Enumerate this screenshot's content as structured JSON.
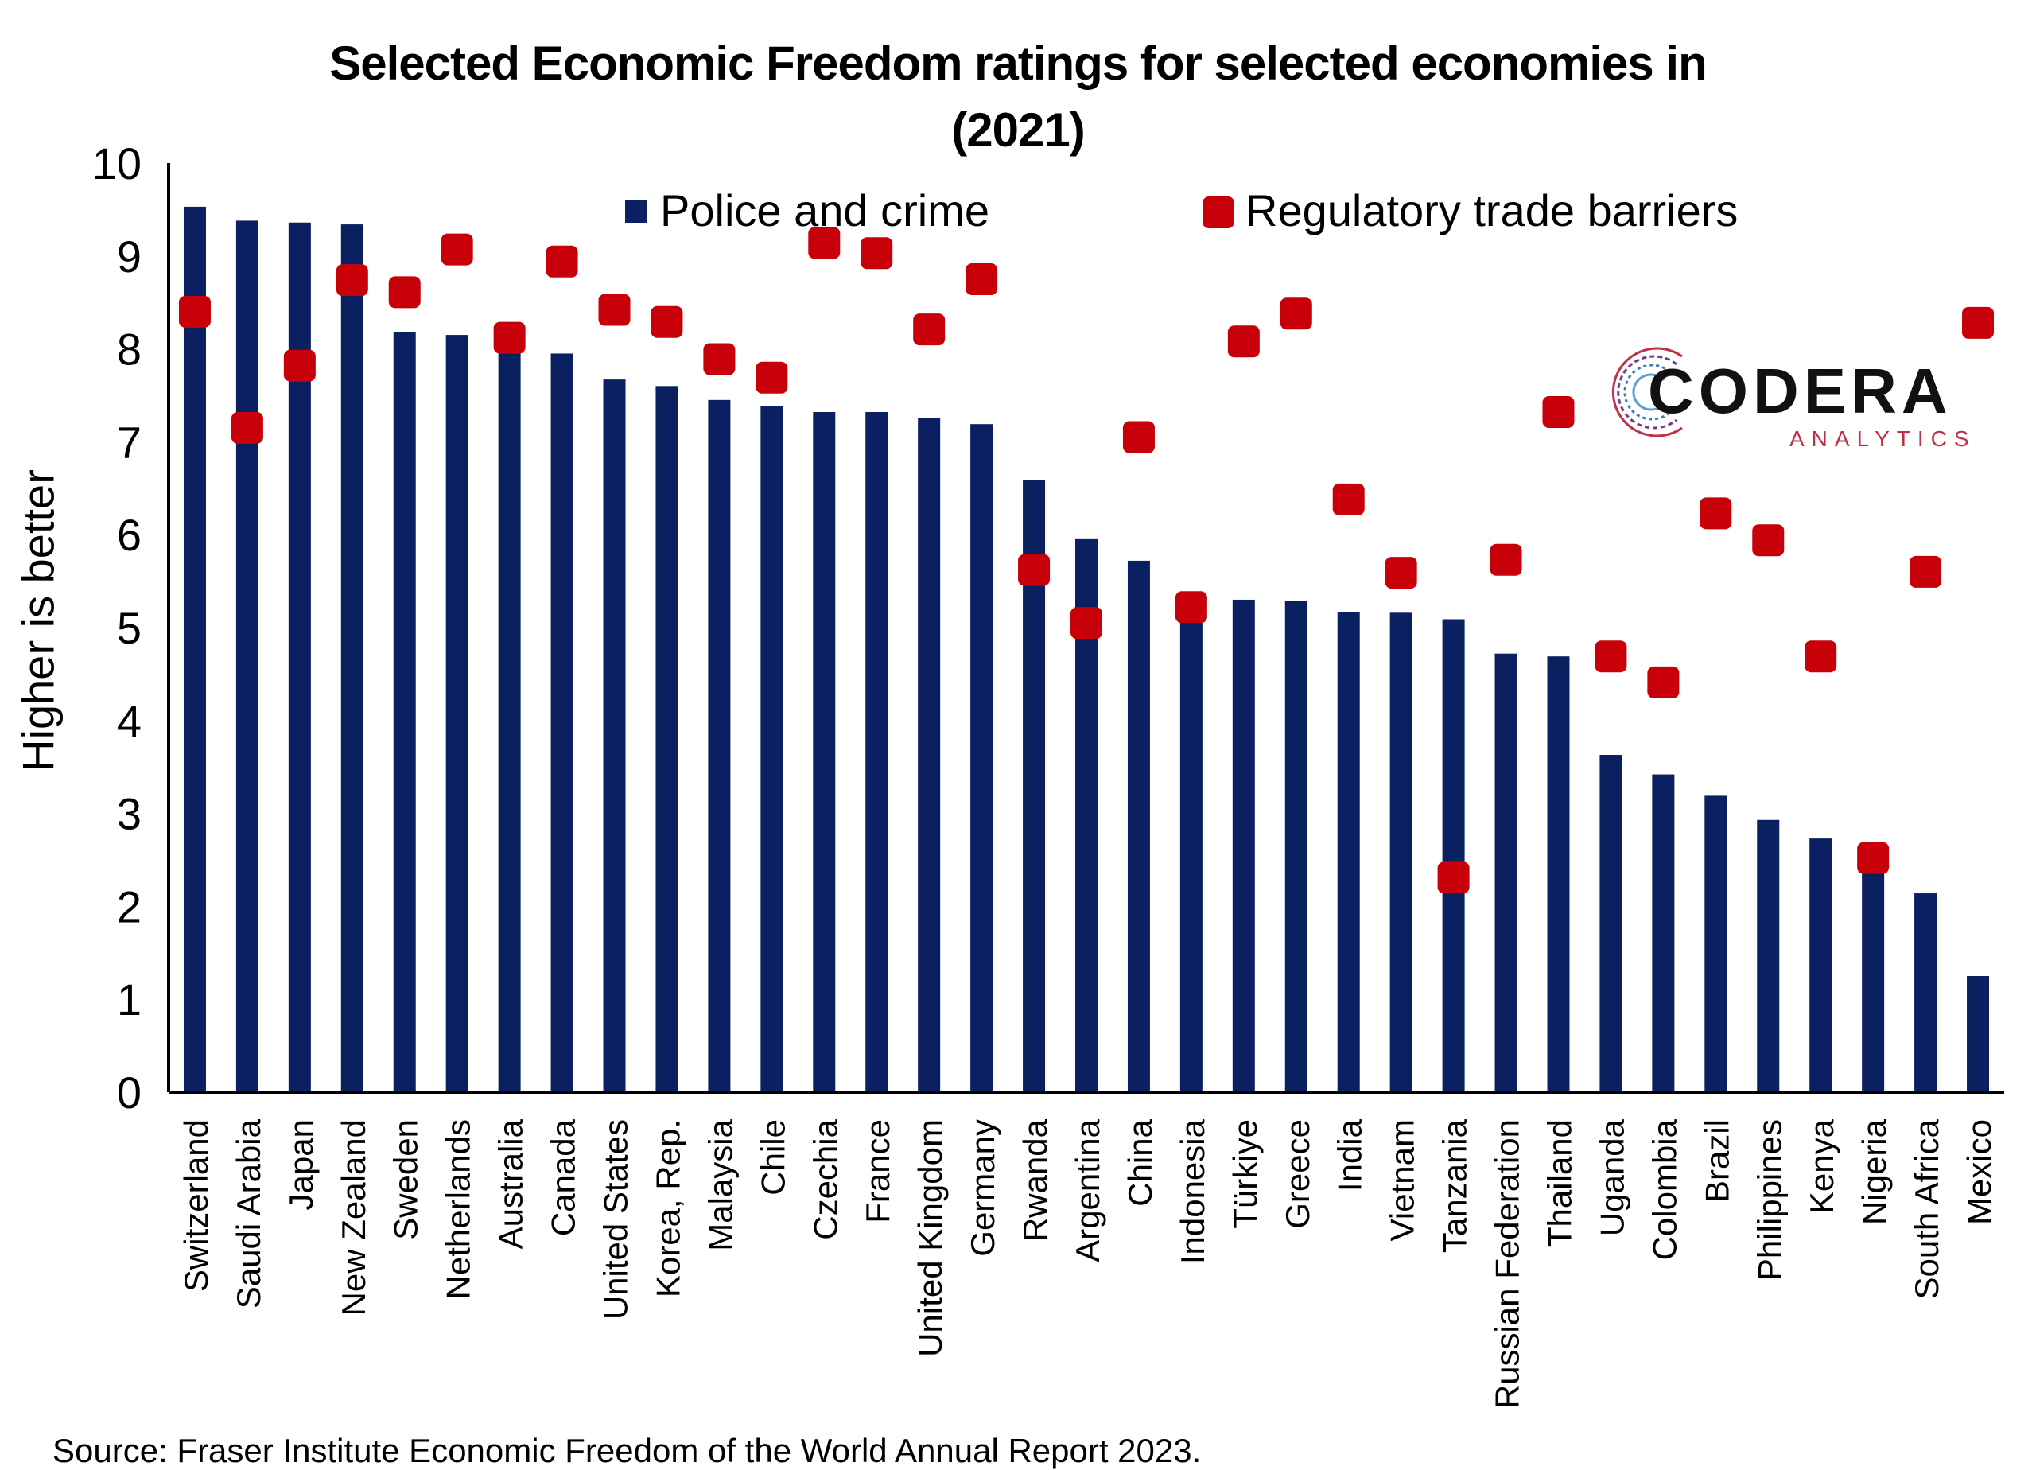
{
  "chart_data": {
    "type": "bar",
    "title": "Selected Economic Freedom ratings for selected economies in (2021)",
    "ylabel": "Higher is better",
    "xlabel": "",
    "ylim": [
      0,
      10
    ],
    "yticks": [
      "0",
      "1",
      "2",
      "3",
      "4",
      "5",
      "6",
      "7",
      "8",
      "9",
      "10"
    ],
    "legend_position": "top",
    "grid": false,
    "categories": [
      "Switzerland",
      "Saudi Arabia",
      "Japan",
      "New Zealand",
      "Sweden",
      "Netherlands",
      "Australia",
      "Canada",
      "United States",
      "Korea, Rep.",
      "Malaysia",
      "Chile",
      "Czechia",
      "France",
      "United Kingdom",
      "Germany",
      "Rwanda",
      "Argentina",
      "China",
      "Indonesia",
      "Türkiye",
      "Greece",
      "India",
      "Vietnam",
      "Tanzania",
      "Russian Federation",
      "Thailand",
      "Uganda",
      "Colombia",
      "Brazil",
      "Philippines",
      "Kenya",
      "Nigeria",
      "South Africa",
      "Mexico"
    ],
    "series": [
      {
        "name": "Police and crime",
        "kind": "bar",
        "color": "#0b2060",
        "values": [
          9.53,
          9.38,
          9.36,
          9.34,
          8.18,
          8.15,
          8.05,
          7.95,
          7.67,
          7.6,
          7.45,
          7.38,
          7.32,
          7.32,
          7.26,
          7.19,
          6.59,
          5.96,
          5.72,
          5.25,
          5.3,
          5.29,
          5.17,
          5.16,
          5.09,
          4.72,
          4.69,
          3.63,
          3.42,
          3.19,
          2.93,
          2.73,
          2.42,
          2.14,
          1.25
        ]
      },
      {
        "name": "Regulatory trade barriers",
        "kind": "marker",
        "color": "#c8000a",
        "values": [
          8.4,
          7.15,
          7.82,
          8.74,
          8.61,
          9.07,
          8.12,
          8.94,
          8.42,
          8.29,
          7.89,
          7.69,
          9.14,
          9.03,
          8.21,
          8.75,
          5.62,
          5.05,
          7.05,
          5.22,
          8.08,
          8.38,
          6.38,
          5.59,
          2.31,
          5.73,
          7.32,
          4.69,
          4.41,
          6.23,
          5.94,
          4.69,
          2.52,
          5.6,
          8.28
        ]
      }
    ]
  },
  "source_note": "Source: Fraser Institute Economic Freedom of the World Annual Report 2023.",
  "logo": {
    "word": "CODERA",
    "sub": "ANALYTICS"
  }
}
